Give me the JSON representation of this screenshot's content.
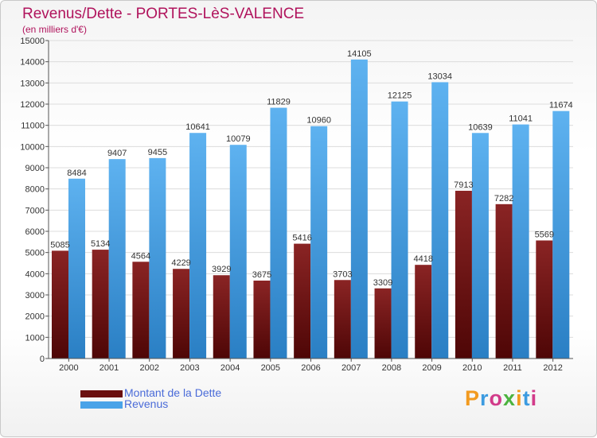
{
  "header": {
    "title": "Revenus/Dette - PORTES-LèS-VALENCE",
    "subtitle": "(en milliers d'€)"
  },
  "legend": [
    {
      "label": "Montant de la Dette",
      "color": "#7b1818"
    },
    {
      "label": "Revenus",
      "color": "#4aa3e8"
    }
  ],
  "logo": {
    "letters": [
      "P",
      "r",
      "o",
      "x",
      "i",
      "t",
      "i"
    ],
    "colors": [
      "#f29a1f",
      "#3c9be0",
      "#d23b8a",
      "#4cb33f",
      "#f29a1f",
      "#3c9be0",
      "#d23b8a"
    ]
  },
  "chart_data": {
    "type": "bar",
    "categories": [
      "2000",
      "2001",
      "2002",
      "2003",
      "2004",
      "2005",
      "2006",
      "2007",
      "2008",
      "2009",
      "2010",
      "2011",
      "2012"
    ],
    "series": [
      {
        "name": "Montant de la Dette",
        "color": "#7b1818",
        "values": [
          5085,
          5134,
          4564,
          4229,
          3929,
          3675,
          5416,
          3703,
          3309,
          4418,
          7913,
          7282,
          5569
        ]
      },
      {
        "name": "Revenus",
        "color": "#4aa3e8",
        "values": [
          8484,
          9407,
          9455,
          10641,
          10079,
          11829,
          10960,
          14105,
          12125,
          13034,
          10639,
          11041,
          11674
        ]
      }
    ],
    "title": "Revenus/Dette - PORTES-LèS-VALENCE",
    "ylim": [
      0,
      15000
    ],
    "yticks": [
      0,
      1000,
      2000,
      3000,
      4000,
      5000,
      6000,
      7000,
      8000,
      9000,
      10000,
      11000,
      12000,
      13000,
      14000,
      15000
    ],
    "grid": true,
    "legend_position": "bottom-left"
  }
}
